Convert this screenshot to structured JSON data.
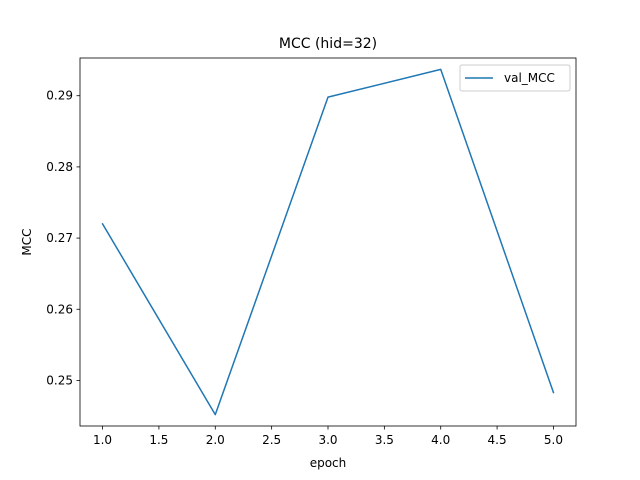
{
  "chart_data": {
    "type": "line",
    "title": "MCC (hid=32)",
    "xlabel": "epoch",
    "ylabel": "MCC",
    "x": [
      1.0,
      2.0,
      3.0,
      4.0,
      5.0
    ],
    "series": [
      {
        "name": "val_MCC",
        "values": [
          0.272,
          0.2452,
          0.2898,
          0.2937,
          0.2483
        ],
        "color": "#1f77b4"
      }
    ],
    "xlim": [
      0.8,
      5.2
    ],
    "ylim": [
      0.2436,
      0.2953
    ],
    "xticks": [
      1.0,
      1.5,
      2.0,
      2.5,
      3.0,
      3.5,
      4.0,
      4.5,
      5.0
    ],
    "xtick_labels": [
      "1.0",
      "1.5",
      "2.0",
      "2.5",
      "3.0",
      "3.5",
      "4.0",
      "4.5",
      "5.0"
    ],
    "yticks": [
      0.25,
      0.26,
      0.27,
      0.28,
      0.29
    ],
    "ytick_labels": [
      "0.25",
      "0.26",
      "0.27",
      "0.28",
      "0.29"
    ],
    "grid": false,
    "legend_position": "top-right"
  }
}
